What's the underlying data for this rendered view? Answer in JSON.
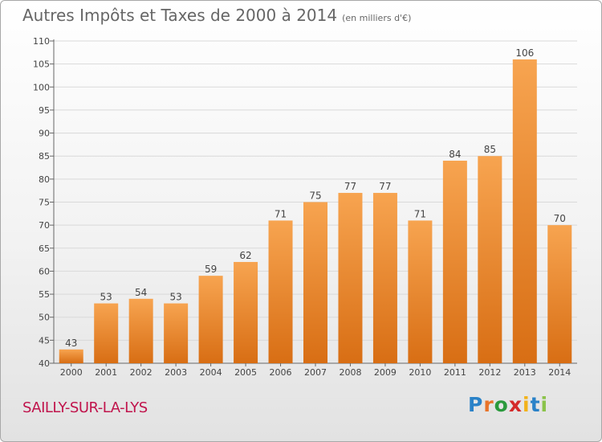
{
  "header": {
    "title": "Autres Impôts et Taxes de 2000 à 2014",
    "subtitle": "(en milliers d'€)"
  },
  "commune": "SAILLY-SUR-LA-LYS",
  "logo": {
    "letters": [
      "P",
      "r",
      "o",
      "x",
      "i",
      "t",
      "i"
    ],
    "colors": [
      "#2a82c8",
      "#e8742a",
      "#2a9a3c",
      "#d42a2a",
      "#f2b21a",
      "#2a82c8",
      "#8bc34a"
    ]
  },
  "colors": {
    "bar_top": "#f7a450",
    "bar_bottom": "#d86e14",
    "axis": "#666666",
    "grid": "#d9d9d9"
  },
  "chart_data": {
    "type": "bar",
    "categories": [
      "2000",
      "2001",
      "2002",
      "2003",
      "2004",
      "2005",
      "2006",
      "2007",
      "2008",
      "2009",
      "2010",
      "2011",
      "2012",
      "2013",
      "2014"
    ],
    "values": [
      43,
      53,
      54,
      53,
      59,
      62,
      71,
      75,
      77,
      77,
      71,
      84,
      85,
      106,
      70
    ],
    "ylim": [
      40,
      110
    ],
    "yticks": [
      40,
      45,
      50,
      55,
      60,
      65,
      70,
      75,
      80,
      85,
      90,
      95,
      100,
      105,
      110
    ],
    "grid": true,
    "xlabel": "",
    "ylabel": ""
  }
}
